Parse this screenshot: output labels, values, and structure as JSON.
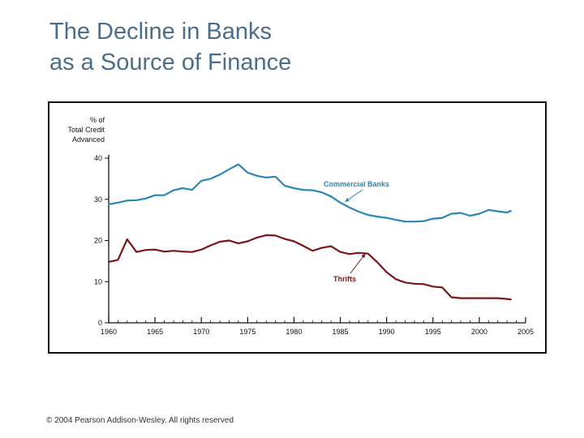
{
  "slide": {
    "title_line1": "The Decline in Banks",
    "title_line2": "as a Source of Finance",
    "copyright": "© 2004 Pearson Addison-Wesley. All rights reserved"
  },
  "colors": {
    "title": "#4a6e8c",
    "commercial_banks": "#2a86b4",
    "thrifts": "#7a1616",
    "axis": "#111111"
  },
  "chart_data": {
    "type": "line",
    "ylabel": [
      "% of",
      "Total Credit",
      "Advanced"
    ],
    "xlim": [
      1960,
      2005
    ],
    "ylim": [
      0,
      40
    ],
    "x_ticks": [
      1960,
      1965,
      1970,
      1975,
      1980,
      1985,
      1990,
      1995,
      2000,
      2005
    ],
    "y_ticks": [
      0,
      10,
      20,
      30,
      40
    ],
    "grid": false,
    "series": [
      {
        "name": "Commercial Banks",
        "color": "#2a86b4",
        "points": [
          [
            1960,
            28.8
          ],
          [
            1961,
            29.2
          ],
          [
            1962,
            29.7
          ],
          [
            1963,
            29.8
          ],
          [
            1964,
            30.2
          ],
          [
            1965,
            31.0
          ],
          [
            1966,
            31.0
          ],
          [
            1967,
            32.2
          ],
          [
            1968,
            32.7
          ],
          [
            1969,
            32.3
          ],
          [
            1970,
            34.5
          ],
          [
            1971,
            35.0
          ],
          [
            1972,
            36.0
          ],
          [
            1973,
            37.3
          ],
          [
            1974,
            38.5
          ],
          [
            1975,
            36.5
          ],
          [
            1976,
            35.7
          ],
          [
            1977,
            35.3
          ],
          [
            1978,
            35.5
          ],
          [
            1979,
            33.3
          ],
          [
            1980,
            32.7
          ],
          [
            1981,
            32.3
          ],
          [
            1982,
            32.2
          ],
          [
            1983,
            31.7
          ],
          [
            1984,
            30.7
          ],
          [
            1985,
            29.2
          ],
          [
            1986,
            28.0
          ],
          [
            1987,
            27.0
          ],
          [
            1988,
            26.2
          ],
          [
            1989,
            25.8
          ],
          [
            1990,
            25.5
          ],
          [
            1991,
            25.0
          ],
          [
            1992,
            24.6
          ],
          [
            1993,
            24.6
          ],
          [
            1994,
            24.7
          ],
          [
            1995,
            25.3
          ],
          [
            1996,
            25.5
          ],
          [
            1997,
            26.5
          ],
          [
            1998,
            26.7
          ],
          [
            1999,
            26.0
          ],
          [
            2000,
            26.5
          ],
          [
            2001,
            27.4
          ],
          [
            2002,
            27.1
          ],
          [
            2003,
            26.8
          ],
          [
            2003.4,
            27.2
          ]
        ]
      },
      {
        "name": "Thrifts",
        "color": "#7a1616",
        "points": [
          [
            1960,
            14.8
          ],
          [
            1961,
            15.3
          ],
          [
            1962,
            20.3
          ],
          [
            1963,
            17.2
          ],
          [
            1964,
            17.7
          ],
          [
            1965,
            17.8
          ],
          [
            1966,
            17.3
          ],
          [
            1967,
            17.5
          ],
          [
            1968,
            17.3
          ],
          [
            1969,
            17.2
          ],
          [
            1970,
            17.8
          ],
          [
            1971,
            18.8
          ],
          [
            1972,
            19.7
          ],
          [
            1973,
            20.0
          ],
          [
            1974,
            19.3
          ],
          [
            1975,
            19.8
          ],
          [
            1976,
            20.7
          ],
          [
            1977,
            21.3
          ],
          [
            1978,
            21.2
          ],
          [
            1979,
            20.4
          ],
          [
            1980,
            19.8
          ],
          [
            1981,
            18.7
          ],
          [
            1982,
            17.5
          ],
          [
            1983,
            18.2
          ],
          [
            1984,
            18.6
          ],
          [
            1985,
            17.2
          ],
          [
            1986,
            16.7
          ],
          [
            1987,
            17.0
          ],
          [
            1988,
            16.8
          ],
          [
            1989,
            14.7
          ],
          [
            1990,
            12.3
          ],
          [
            1991,
            10.6
          ],
          [
            1992,
            9.8
          ],
          [
            1993,
            9.5
          ],
          [
            1994,
            9.4
          ],
          [
            1995,
            8.8
          ],
          [
            1996,
            8.6
          ],
          [
            1997,
            6.2
          ],
          [
            1998,
            6.0
          ],
          [
            1999,
            6.0
          ],
          [
            2000,
            6.0
          ],
          [
            2001,
            6.0
          ],
          [
            2002,
            6.0
          ],
          [
            2003,
            5.8
          ],
          [
            2003.4,
            5.7
          ]
        ]
      }
    ],
    "annotations": [
      {
        "text": "Commercial Banks",
        "series": "Commercial Banks",
        "arrow_to": [
          1985.5,
          29.4
        ]
      },
      {
        "text": "Thrifts",
        "series": "Thrifts",
        "arrow_to": [
          1987.7,
          16.8
        ]
      }
    ]
  }
}
